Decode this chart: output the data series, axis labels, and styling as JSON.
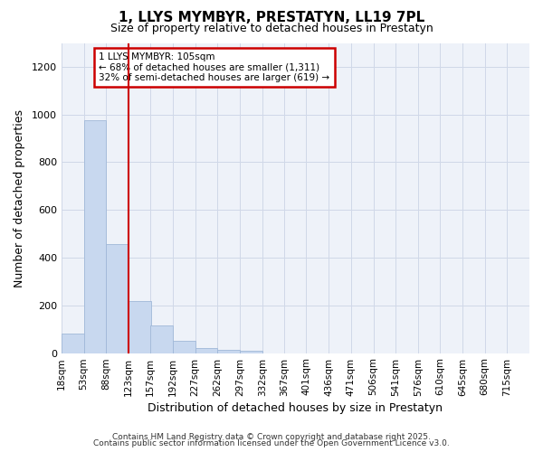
{
  "title_line1": "1, LLYS MYMBYR, PRESTATYN, LL19 7PL",
  "title_line2": "Size of property relative to detached houses in Prestatyn",
  "xlabel": "Distribution of detached houses by size in Prestatyn",
  "ylabel": "Number of detached properties",
  "footer_line1": "Contains HM Land Registry data © Crown copyright and database right 2025.",
  "footer_line2": "Contains public sector information licensed under the Open Government Licence v3.0.",
  "annotation_title": "1 LLYS MYMBYR: 105sqm",
  "annotation_line1": "← 68% of detached houses are smaller (1,311)",
  "annotation_line2": "32% of semi-detached houses are larger (619) →",
  "bar_color": "#c8d8ef",
  "bar_edge_color": "#a0b8d8",
  "vline_color": "#cc0000",
  "vline_x": 123,
  "categories": [
    18,
    53,
    88,
    123,
    157,
    192,
    227,
    262,
    297,
    332,
    367,
    401,
    436,
    471,
    506,
    541,
    576,
    610,
    645,
    680,
    715
  ],
  "bin_width": 35,
  "values": [
    80,
    975,
    455,
    220,
    115,
    50,
    20,
    15,
    10,
    0,
    0,
    0,
    0,
    0,
    0,
    0,
    0,
    0,
    0,
    0,
    0
  ],
  "ylim": [
    0,
    1300
  ],
  "yticks": [
    0,
    200,
    400,
    600,
    800,
    1000,
    1200
  ],
  "grid_color": "#d0d8e8",
  "bg_color": "#ffffff",
  "plot_bg_color": "#eef2f9",
  "annotation_box_color": "#cc0000",
  "title_fontsize": 11,
  "subtitle_fontsize": 9,
  "axis_label_fontsize": 9,
  "tick_fontsize": 7.5,
  "footer_fontsize": 6.5
}
